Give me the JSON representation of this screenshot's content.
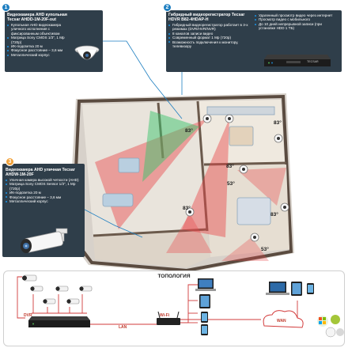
{
  "panel1": {
    "number": "1",
    "title": "Видеокамера AHD купольная Tecsar AHDD-1M-20F-out",
    "bullets": [
      "Купольная AHD видеокамера уличного исполнения с фиксированным объективом",
      "Матрица Sony CMOS 1/3\", 1 Мр (720р)",
      "ИК-подсветка 20 м",
      "Фокусное расстояние – 3,6 мм",
      "Металлический корпус"
    ]
  },
  "panel2": {
    "number": "2",
    "title": "Гибридный видеорегистратор Tecsar HDVR B82-4HDAP-H",
    "bullets_left": [
      "Гибридный видеорегистратор работает в 3-х режимах (DVR/HVR/NVR)",
      "8 каналов записи видео",
      "Современный формат 1 Мр (720р)",
      "Возможность подключения к монитору, телевизору"
    ],
    "bullets_right": [
      "Удаленный просмотр видео через интернет",
      "Просмотр видео с мобильного",
      "До 10 дней непрерывной записи (при установке HDD 1 ТБ)"
    ],
    "device_label": "TECSAR"
  },
  "panel3": {
    "number": "3",
    "title": "Видеокамера AHD уличная Tecsar AHDW-1M-20F",
    "bullets": [
      "Уличная камера высокой четкости (AHD)",
      "Матрица Sony CMOS Sensor 1/3\", 1 Mp (720р)",
      "ИК-подсветка 20 м",
      "Фокусное расстояние – 3,6 мм",
      "Металлический корпус"
    ]
  },
  "angles": [
    "83°",
    "83°",
    "83°",
    "83°",
    "53°",
    "83°",
    "53°"
  ],
  "topology": {
    "title": "ТОПОЛОГИЯ",
    "dvr_label": "DVR",
    "lan_label": "LAN",
    "wifi_label": "Wi-Fi",
    "wan_label": "WAN"
  },
  "colors": {
    "panel_bg": "#2f3e4a",
    "accent_blue": "#1e7fc1",
    "cone_red": "#e8474a",
    "cone_green": "#3ec46d",
    "wire_red": "#d23b3b",
    "badge_orange": "#f2a23a"
  },
  "icons": [
    "dome-camera-icon",
    "bullet-camera-icon",
    "dvr-recorder-icon",
    "wifi-router-icon",
    "laptop-icon",
    "tablet-icon",
    "smartphone-icon",
    "cloud-wan-icon",
    "os-platforms-icon"
  ]
}
